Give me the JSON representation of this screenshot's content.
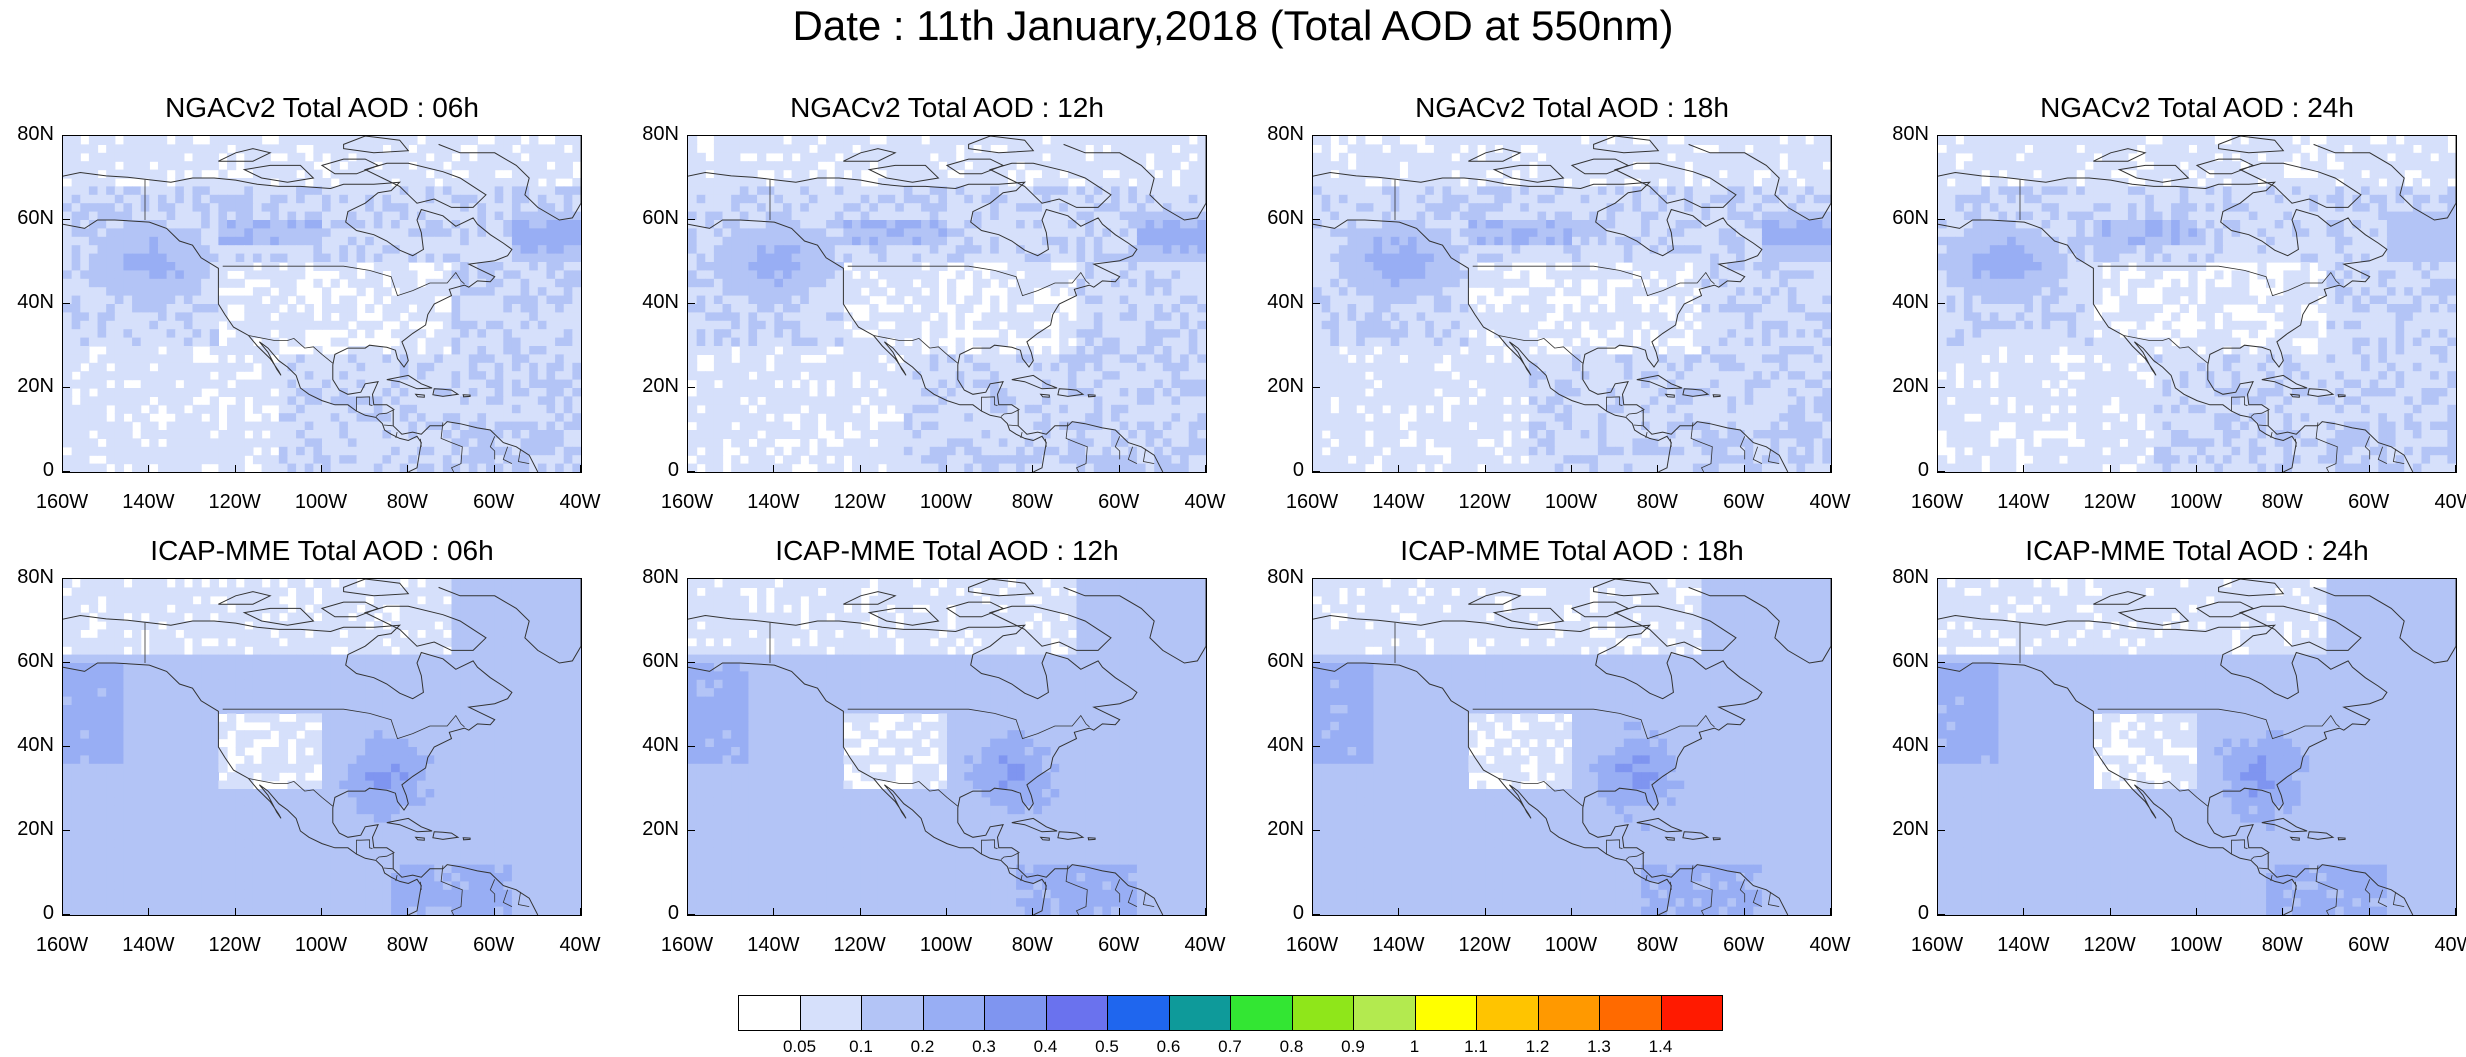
{
  "main_title": "Date : 11th January,2018 (Total AOD at 550nm)",
  "panels": [
    {
      "title": "NGACv2 Total AOD : 06h",
      "model": "NGACv2",
      "hour": "06h"
    },
    {
      "title": "NGACv2 Total AOD : 12h",
      "model": "NGACv2",
      "hour": "12h"
    },
    {
      "title": "NGACv2 Total AOD : 18h",
      "model": "NGACv2",
      "hour": "18h"
    },
    {
      "title": "NGACv2 Total AOD : 24h",
      "model": "NGACv2",
      "hour": "24h"
    },
    {
      "title": "ICAP-MME Total AOD : 06h",
      "model": "ICAP-MME",
      "hour": "06h"
    },
    {
      "title": "ICAP-MME Total AOD : 12h",
      "model": "ICAP-MME",
      "hour": "12h"
    },
    {
      "title": "ICAP-MME Total AOD : 18h",
      "model": "ICAP-MME",
      "hour": "18h"
    },
    {
      "title": "ICAP-MME Total AOD : 24h",
      "model": "ICAP-MME",
      "hour": "24h"
    }
  ],
  "lat_labels": [
    "80N",
    "60N",
    "40N",
    "20N",
    "0"
  ],
  "lon_labels": [
    "160W",
    "140W",
    "120W",
    "100W",
    "80W",
    "60W",
    "40W"
  ],
  "colorbar": {
    "labels": [
      "0.05",
      "0.1",
      "0.2",
      "0.3",
      "0.4",
      "0.5",
      "0.6",
      "0.7",
      "0.8",
      "0.9",
      "1",
      "1.1",
      "1.2",
      "1.3",
      "1.4"
    ],
    "colors": [
      "#ffffff",
      "#d6e0fb",
      "#b3c4f6",
      "#98aef4",
      "#7f95f0",
      "#6a72ee",
      "#1f66ee",
      "#0e9a9a",
      "#33e633",
      "#8fe61a",
      "#b3ea4f",
      "#ffff00",
      "#ffc400",
      "#ff9900",
      "#ff6a00",
      "#ff1a00"
    ]
  },
  "colors": {
    "coastline": "#333333",
    "background": "#ffffff",
    "low_aod": "#d6e0fb",
    "mid_aod": "#b3c4f6",
    "high_aod": "#7f95f0"
  }
}
